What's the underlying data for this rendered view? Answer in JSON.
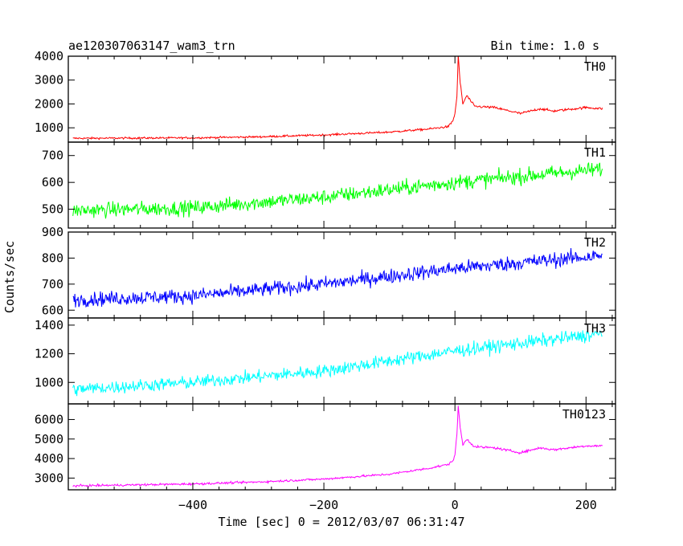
{
  "header": {
    "title": "ae120307063147_wam3_trn",
    "bin_time": "Bin time: 1.0 s"
  },
  "chart_data": {
    "type": "line",
    "title": "ae120307063147_wam3_trn",
    "xlabel": "Time [sec] 0 = 2012/03/07 06:31:47",
    "ylabel": "Counts/sec",
    "xlim": [
      -590,
      245
    ],
    "x_ticks": [
      -400,
      -200,
      0,
      200
    ],
    "x_tick_labels": [
      "−400",
      "−200",
      "0",
      "200"
    ],
    "x_range_of_data": [
      -583,
      225
    ],
    "grid": false,
    "panels": [
      {
        "name": "TH0",
        "color": "#ff0000",
        "ylim": [
          400,
          4000
        ],
        "y_ticks": [
          1000,
          2000,
          3000,
          4000
        ],
        "y_tick_labels": [
          "1000",
          "2000",
          "3000",
          "4000"
        ],
        "shape": [
          {
            "t": -583,
            "v": 560
          },
          {
            "t": -400,
            "v": 580
          },
          {
            "t": -300,
            "v": 620
          },
          {
            "t": -200,
            "v": 700
          },
          {
            "t": -100,
            "v": 820
          },
          {
            "t": -40,
            "v": 950
          },
          {
            "t": -10,
            "v": 1050
          },
          {
            "t": -3,
            "v": 1300
          },
          {
            "t": 0,
            "v": 1600
          },
          {
            "t": 3,
            "v": 2300
          },
          {
            "t": 5,
            "v": 4000
          },
          {
            "t": 8,
            "v": 2900
          },
          {
            "t": 12,
            "v": 2000
          },
          {
            "t": 18,
            "v": 2350
          },
          {
            "t": 30,
            "v": 1900
          },
          {
            "t": 60,
            "v": 1850
          },
          {
            "t": 100,
            "v": 1600
          },
          {
            "t": 130,
            "v": 1800
          },
          {
            "t": 150,
            "v": 1700
          },
          {
            "t": 200,
            "v": 1850
          },
          {
            "t": 225,
            "v": 1800
          }
        ],
        "noise": 40
      },
      {
        "name": "TH1",
        "color": "#00ff00",
        "ylim": [
          430,
          750
        ],
        "y_ticks": [
          500,
          600,
          700
        ],
        "y_tick_labels": [
          "500",
          "600",
          "700"
        ],
        "shape": [
          {
            "t": -583,
            "v": 495
          },
          {
            "t": -400,
            "v": 505
          },
          {
            "t": -200,
            "v": 545
          },
          {
            "t": 0,
            "v": 600
          },
          {
            "t": 225,
            "v": 650
          }
        ],
        "noise": 28
      },
      {
        "name": "TH2",
        "color": "#0000ff",
        "ylim": [
          570,
          900
        ],
        "y_ticks": [
          600,
          700,
          800,
          900
        ],
        "y_tick_labels": [
          "600",
          "700",
          "800",
          "900"
        ],
        "shape": [
          {
            "t": -583,
            "v": 640
          },
          {
            "t": -400,
            "v": 655
          },
          {
            "t": -200,
            "v": 700
          },
          {
            "t": 0,
            "v": 760
          },
          {
            "t": 225,
            "v": 810
          }
        ],
        "noise": 28
      },
      {
        "name": "TH3",
        "color": "#00ffff",
        "ylim": [
          850,
          1450
        ],
        "y_ticks": [
          1000,
          1200,
          1400
        ],
        "y_tick_labels": [
          "1000",
          "1200",
          "1400"
        ],
        "shape": [
          {
            "t": -583,
            "v": 950
          },
          {
            "t": -400,
            "v": 1000
          },
          {
            "t": -200,
            "v": 1080
          },
          {
            "t": 0,
            "v": 1220
          },
          {
            "t": 225,
            "v": 1340
          }
        ],
        "noise": 45
      },
      {
        "name": "TH0123",
        "color": "#ff00ff",
        "ylim": [
          2400,
          6800
        ],
        "y_ticks": [
          3000,
          4000,
          5000,
          6000
        ],
        "y_tick_labels": [
          "3000",
          "4000",
          "5000",
          "6000"
        ],
        "shape": [
          {
            "t": -583,
            "v": 2600
          },
          {
            "t": -400,
            "v": 2700
          },
          {
            "t": -300,
            "v": 2800
          },
          {
            "t": -200,
            "v": 2950
          },
          {
            "t": -100,
            "v": 3200
          },
          {
            "t": -40,
            "v": 3500
          },
          {
            "t": -10,
            "v": 3700
          },
          {
            "t": -3,
            "v": 3900
          },
          {
            "t": 0,
            "v": 4200
          },
          {
            "t": 3,
            "v": 5200
          },
          {
            "t": 5,
            "v": 6700
          },
          {
            "t": 8,
            "v": 5600
          },
          {
            "t": 12,
            "v": 4700
          },
          {
            "t": 18,
            "v": 5000
          },
          {
            "t": 30,
            "v": 4600
          },
          {
            "t": 60,
            "v": 4550
          },
          {
            "t": 100,
            "v": 4300
          },
          {
            "t": 130,
            "v": 4550
          },
          {
            "t": 150,
            "v": 4450
          },
          {
            "t": 200,
            "v": 4650
          },
          {
            "t": 225,
            "v": 4650
          }
        ],
        "noise": 55
      }
    ]
  }
}
